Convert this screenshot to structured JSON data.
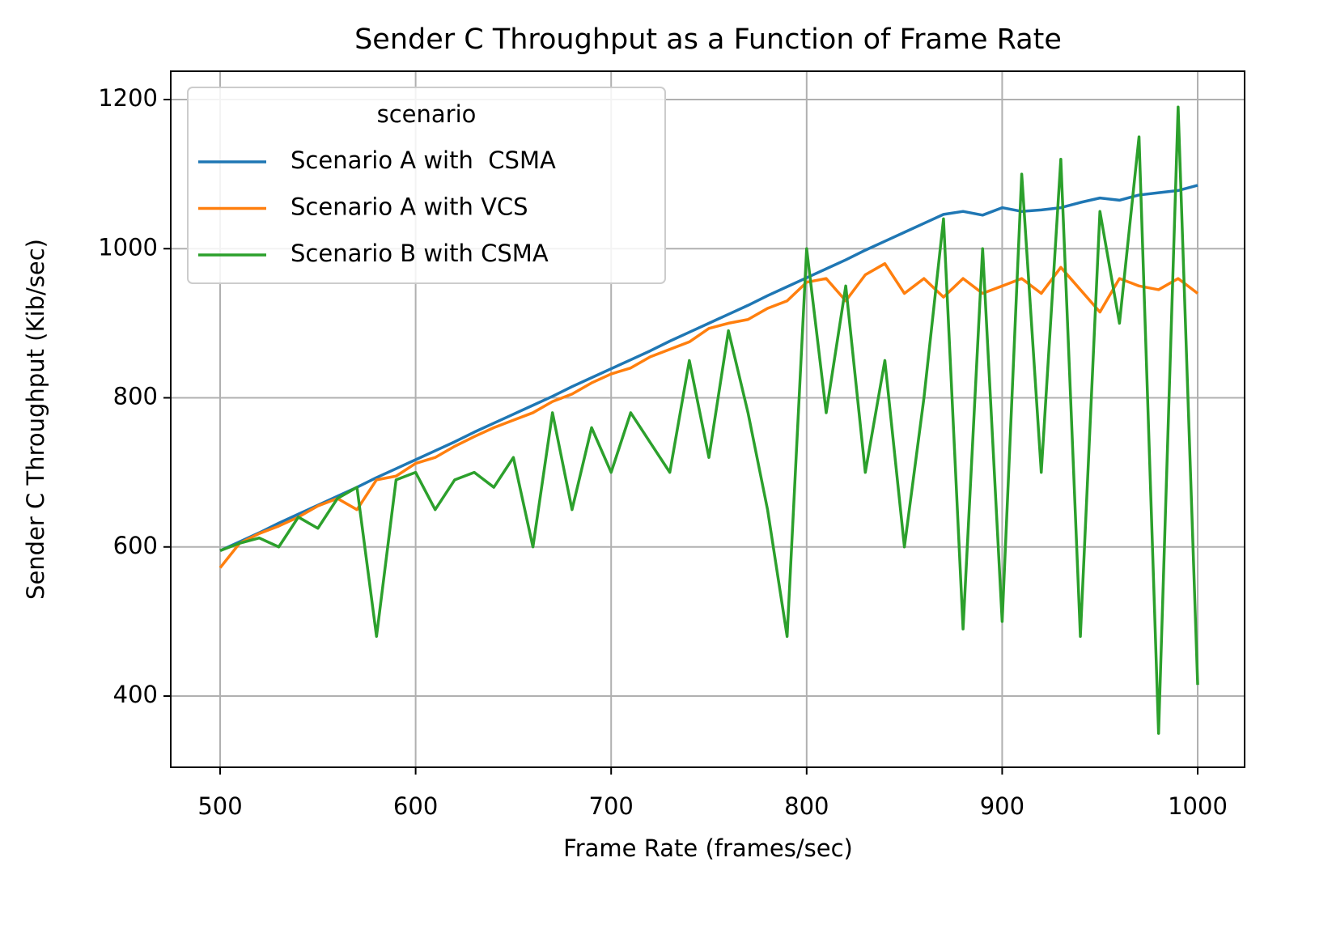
{
  "chart_data": {
    "type": "line",
    "title": "Sender C Throughput as a Function of Frame Rate",
    "xlabel": "Frame Rate (frames/sec)",
    "ylabel": "Sender C Throughput (Kib/sec)",
    "legend_title": "scenario",
    "legend_loc": "upper left",
    "grid": true,
    "x": [
      500,
      510,
      520,
      530,
      540,
      550,
      560,
      570,
      580,
      590,
      600,
      610,
      620,
      630,
      640,
      650,
      660,
      670,
      680,
      690,
      700,
      710,
      720,
      730,
      740,
      750,
      760,
      770,
      780,
      790,
      800,
      810,
      820,
      830,
      840,
      850,
      860,
      870,
      880,
      890,
      900,
      910,
      920,
      930,
      940,
      950,
      960,
      970,
      980,
      990,
      1000
    ],
    "series": [
      {
        "name": "Scenario A with  CSMA",
        "color": "#1f77b4",
        "values": [
          595,
          607,
          619,
          632,
          644,
          656,
          668,
          680,
          693,
          705,
          717,
          729,
          741,
          754,
          766,
          778,
          790,
          802,
          815,
          827,
          839,
          851,
          863,
          876,
          888,
          900,
          912,
          924,
          937,
          949,
          961,
          973,
          985,
          998,
          1010,
          1022,
          1034,
          1046,
          1050,
          1045,
          1055,
          1050,
          1052,
          1055,
          1062,
          1068,
          1065,
          1072,
          1075,
          1078,
          1085
        ]
      },
      {
        "name": "Scenario A with VCS",
        "color": "#ff7f0e",
        "values": [
          572,
          605,
          618,
          628,
          640,
          655,
          665,
          650,
          690,
          695,
          712,
          720,
          735,
          748,
          760,
          770,
          780,
          795,
          805,
          820,
          832,
          840,
          855,
          865,
          875,
          893,
          900,
          905,
          920,
          930,
          955,
          960,
          930,
          965,
          980,
          940,
          960,
          935,
          960,
          940,
          950,
          960,
          940,
          975,
          945,
          915,
          960,
          950,
          945,
          960,
          940
        ]
      },
      {
        "name": "Scenario B with CSMA",
        "color": "#2ca02c",
        "values": [
          595,
          605,
          612,
          600,
          640,
          625,
          665,
          680,
          480,
          690,
          700,
          650,
          690,
          700,
          680,
          720,
          600,
          780,
          650,
          760,
          700,
          780,
          740,
          700,
          850,
          720,
          890,
          780,
          650,
          480,
          1000,
          780,
          950,
          700,
          850,
          600,
          800,
          1040,
          490,
          1000,
          500,
          1100,
          700,
          1120,
          480,
          1050,
          900,
          1150,
          350,
          1190,
          415
        ]
      }
    ],
    "xlim": [
      474.75,
      1024
    ],
    "ylim": [
      304.5,
      1238
    ],
    "xticks": [
      500,
      600,
      700,
      800,
      900,
      1000
    ],
    "yticks": [
      400,
      600,
      800,
      1000,
      1200
    ]
  }
}
